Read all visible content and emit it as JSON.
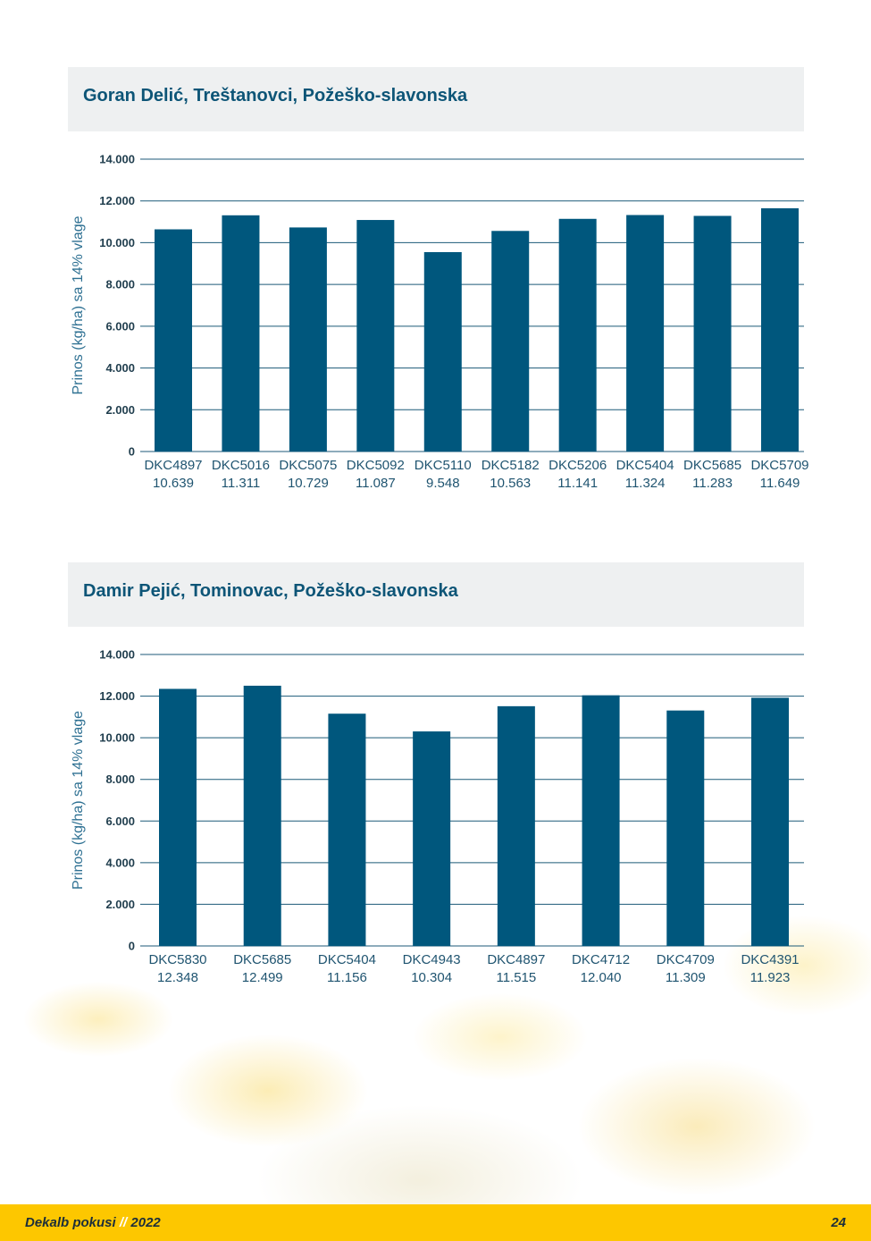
{
  "chart_data": [
    {
      "type": "bar",
      "title": "Goran Delić, Treštanovci, Požeško-slavonska",
      "ylabel": "Prinos (kg/ha) sa 14% vlage",
      "ylim": [
        0,
        14000
      ],
      "ytick_values": [
        0,
        2000,
        4000,
        6000,
        8000,
        10000,
        12000,
        14000
      ],
      "ytick_labels": [
        "0",
        "2.000",
        "4.000",
        "6.000",
        "8.000",
        "10.000",
        "12.000",
        "14.000"
      ],
      "grid": true,
      "bar_color": "#00577d",
      "categories": [
        "DKC4897",
        "DKC5016",
        "DKC5075",
        "DKC5092",
        "DKC5110",
        "DKC5182",
        "DKC5206",
        "DKC5404",
        "DKC5685",
        "DKC5709"
      ],
      "values": [
        10639,
        11311,
        10729,
        11087,
        9548,
        10563,
        11141,
        11324,
        11283,
        11649
      ],
      "value_labels": [
        "10.639",
        "11.311",
        "10.729",
        "11.087",
        "9.548",
        "10.563",
        "11.141",
        "11.324",
        "11.283",
        "11.649"
      ]
    },
    {
      "type": "bar",
      "title": "Damir Pejić, Tominovac, Požeško-slavonska",
      "ylabel": "Prinos (kg/ha) sa 14% vlage",
      "ylim": [
        0,
        14000
      ],
      "ytick_values": [
        0,
        2000,
        4000,
        6000,
        8000,
        10000,
        12000,
        14000
      ],
      "ytick_labels": [
        "0",
        "2.000",
        "4.000",
        "6.000",
        "8.000",
        "10.000",
        "12.000",
        "14.000"
      ],
      "grid": true,
      "bar_color": "#00577d",
      "categories": [
        "DKC5830",
        "DKC5685",
        "DKC5404",
        "DKC4943",
        "DKC4897",
        "DKC4712",
        "DKC4709",
        "DKC4391"
      ],
      "values": [
        12348,
        12499,
        11156,
        10304,
        11515,
        12040,
        11309,
        11923
      ],
      "value_labels": [
        "12.348",
        "12.499",
        "11.156",
        "10.304",
        "11.515",
        "12.040",
        "11.309",
        "11.923"
      ]
    }
  ],
  "footer": {
    "brand": "Dekalb pokusi",
    "separator": "//",
    "year": "2022",
    "page_number": "24"
  }
}
